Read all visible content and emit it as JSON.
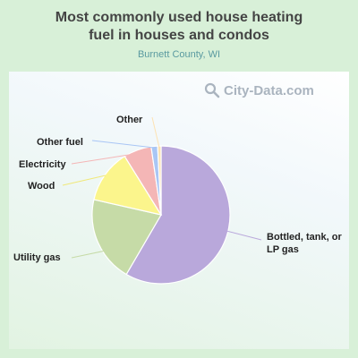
{
  "header": {
    "title_line1": "Most commonly used house heating",
    "title_line2": "fuel in houses and condos",
    "subtitle": "Burnett County, WI"
  },
  "watermark": {
    "text": "City-Data.com",
    "icon": "magnifier-icon"
  },
  "colors": {
    "background": "#d8f0d8",
    "slices": [
      "#b9a8db",
      "#c6dba7",
      "#fbf58c",
      "#f4b6b6",
      "#a9c6f5",
      "#fde2b3"
    ]
  },
  "chart_data": {
    "type": "pie",
    "title": "Most commonly used house heating fuel in houses and condos",
    "subtitle": "Burnett County, WI",
    "start": "top, clockwise",
    "slices": [
      {
        "label": "Bottled, tank, or LP gas",
        "value": 58.0
      },
      {
        "label": "Utility gas",
        "value": 20.0
      },
      {
        "label": "Wood",
        "value": 12.5
      },
      {
        "label": "Electricity",
        "value": 6.5
      },
      {
        "label": "Other fuel",
        "value": 1.5
      },
      {
        "label": "Other",
        "value": 0.8
      }
    ]
  }
}
